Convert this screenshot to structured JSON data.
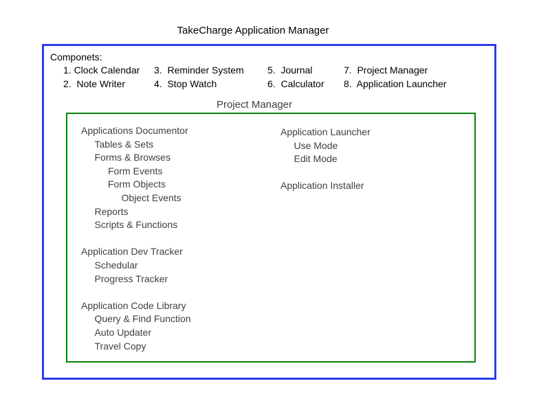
{
  "page": {
    "title": "TakeCharge Application Manager"
  },
  "colors": {
    "outer_border": "#2b3be8",
    "inner_border": "#088008",
    "heading_text": "#000000",
    "tree_text": "#3f3f3f",
    "background": "#ffffff"
  },
  "components": {
    "heading": "Componets:",
    "rows": [
      [
        "1. Clock Calendar",
        "3.  Reminder System",
        "5.  Journal",
        "7.  Project Manager"
      ],
      [
        "2.  Note Writer",
        "4.  Stop Watch",
        "6.  Calculator",
        "8.  Application Launcher"
      ]
    ]
  },
  "project_manager": {
    "heading": "Project Manager",
    "left_column": [
      {
        "label": "Applications Documentor",
        "indent": 0
      },
      {
        "label": "Tables & Sets",
        "indent": 1
      },
      {
        "label": "Forms & Browses",
        "indent": 1
      },
      {
        "label": "Form Events",
        "indent": 2
      },
      {
        "label": "Form Objects",
        "indent": 2
      },
      {
        "label": "Object Events",
        "indent": 3
      },
      {
        "label": "Reports",
        "indent": 1
      },
      {
        "label": "Scripts & Functions",
        "indent": 1
      },
      {
        "label": "",
        "indent": 0
      },
      {
        "label": "Application Dev Tracker",
        "indent": 0
      },
      {
        "label": "Schedular",
        "indent": 1
      },
      {
        "label": "Progress Tracker",
        "indent": 1
      },
      {
        "label": "",
        "indent": 0
      },
      {
        "label": "Application Code Library",
        "indent": 0
      },
      {
        "label": "Query & Find Function",
        "indent": 1
      },
      {
        "label": "Auto Updater",
        "indent": 1
      },
      {
        "label": "Travel Copy",
        "indent": 1
      }
    ],
    "right_column": [
      {
        "label": "Application Launcher",
        "indent": 0
      },
      {
        "label": "Use Mode",
        "indent": 1
      },
      {
        "label": "Edit Mode",
        "indent": 1
      },
      {
        "label": "",
        "indent": 0
      },
      {
        "label": "Application Installer",
        "indent": 0
      }
    ]
  }
}
